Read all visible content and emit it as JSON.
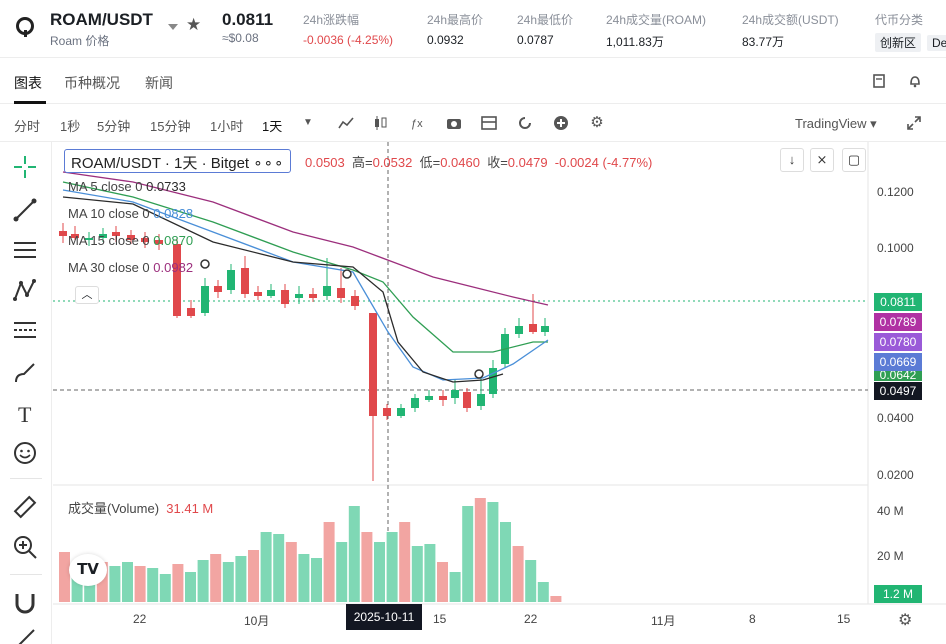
{
  "header": {
    "pair": "ROAM/USDT",
    "pair_sub": "Roam 价格",
    "price": "0.0811",
    "price_usd": "≈$0.08",
    "stats": [
      {
        "label": "24h涨跌幅",
        "value": "-0.0036 (-4.25%)"
      },
      {
        "label": "24h最高价",
        "value": "0.0932"
      },
      {
        "label": "24h最低价",
        "value": "0.0787"
      },
      {
        "label": "24h成交量(ROAM)",
        "value": "1,011.83万"
      },
      {
        "label": "24h成交额(USDT)",
        "value": "83.77万"
      },
      {
        "label": "代币分类",
        "value": "创新区"
      }
    ],
    "extra_tag": "De"
  },
  "tabs": [
    "图表",
    "币种概况",
    "新闻"
  ],
  "toolbar": {
    "intervals": [
      "分时",
      "1秒",
      "5分钟",
      "15分钟",
      "1小时",
      "1天"
    ],
    "active": "1天",
    "tradingview": "TradingView"
  },
  "legend": {
    "title": "ROAM/USDT · 1天 · Bitget",
    "ohlc_prefix": "0.0503",
    "high_label": "高=",
    "high": "0.0532",
    "low_label": "低=",
    "low": "0.0460",
    "close_label": "收=",
    "close": "0.0479",
    "change": "-0.0024 (-4.77%)"
  },
  "ma": [
    {
      "label": "MA 5 close 0",
      "value": "0.0733",
      "color": "#2b2b2b"
    },
    {
      "label": "MA 10 close 0",
      "value": "0.0828",
      "color": "#4a8fd8"
    },
    {
      "label": "MA 15 close 0",
      "value": "0.0870",
      "color": "#2f9e53"
    },
    {
      "label": "MA 30 close 0",
      "value": "0.0982",
      "color": "#9c2f7d"
    }
  ],
  "volume_label": "成交量(Volume)",
  "volume_value": "31.41 M",
  "y_axis": [
    "0.1200",
    "0.1000",
    "0.0400",
    "0.0200"
  ],
  "price_tags": [
    {
      "value": "0.0811",
      "color": "#21b573"
    },
    {
      "value": "0.0789",
      "color": "#b031a3"
    },
    {
      "value": "0.0780",
      "color": "#9a5ad8"
    },
    {
      "value": "0.0669",
      "color": "#5b7bd5"
    },
    {
      "value": "0.0642",
      "color": "#2f9e53"
    },
    {
      "value": "0.0497",
      "color": "#131722"
    }
  ],
  "vol_axis": [
    "40 M",
    "20 M"
  ],
  "vol_tag": "1.2 M",
  "x_axis": [
    "22",
    "10月",
    "15",
    "22",
    "11月",
    "8",
    "15"
  ],
  "crosshair_date": "2025-10-11",
  "colors": {
    "up": "#21b573",
    "down": "#e0484b",
    "vol_up": "#7fd8b5",
    "vol_down": "#f2a5a2"
  }
}
